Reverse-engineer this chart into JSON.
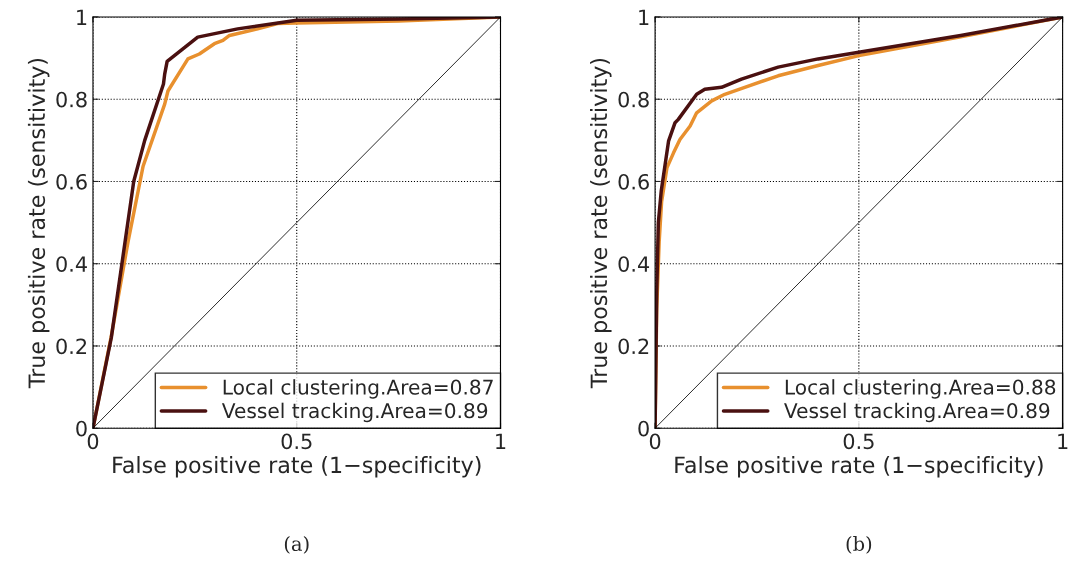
{
  "chart_data": [
    {
      "type": "line",
      "xlabel": "False positive rate (1−specificity)",
      "ylabel": "True positive rate (sensitivity)",
      "xlim": [
        0,
        1
      ],
      "ylim": [
        0,
        1
      ],
      "xticks": [
        0,
        0.5,
        1
      ],
      "yticks": [
        0,
        0.2,
        0.4,
        0.6,
        0.8,
        1
      ],
      "grid": true,
      "legend": "bottom right",
      "line_style": "solid",
      "annotations": [
        "(a)"
      ],
      "series": [
        {
          "name": "Local clustering.Area=0.87",
          "color": "#e8902e",
          "x": [
            0,
            0.045,
            0.086,
            0.123,
            0.176,
            0.184,
            0.233,
            0.261,
            0.298,
            0.319,
            0.335,
            0.404,
            0.453,
            0.5,
            0.75,
            1
          ],
          "values": [
            0,
            0.224,
            0.453,
            0.637,
            0.788,
            0.82,
            0.898,
            0.91,
            0.935,
            0.943,
            0.955,
            0.971,
            0.984,
            0.985,
            0.99,
            1
          ]
        },
        {
          "name": "Vessel tracking.Area=0.89",
          "color": "#4a1010",
          "x": [
            0,
            0.045,
            0.1,
            0.127,
            0.173,
            0.176,
            0.182,
            0.257,
            0.355,
            0.5,
            0.75,
            1
          ],
          "values": [
            0,
            0.22,
            0.6,
            0.7,
            0.837,
            0.861,
            0.892,
            0.951,
            0.971,
            0.992,
            0.995,
            1
          ]
        },
        {
          "color": "#000000",
          "x": [
            0,
            1
          ],
          "values": [
            0,
            1
          ]
        }
      ]
    },
    {
      "type": "line",
      "xlabel": "False positive rate (1−specificity)",
      "ylabel": "True positive rate (sensitivity)",
      "xlim": [
        0,
        1
      ],
      "ylim": [
        0,
        1
      ],
      "xticks": [
        0,
        0.5,
        1
      ],
      "yticks": [
        0,
        0.2,
        0.4,
        0.6,
        0.8,
        1
      ],
      "grid": true,
      "legend": "bottom right",
      "line_style": "solid",
      "annotations": [
        "(b)"
      ],
      "series": [
        {
          "name": "Local clustering.Area=0.88",
          "color": "#e8902e",
          "x": [
            0,
            0.004,
            0.01,
            0.016,
            0.029,
            0.045,
            0.061,
            0.086,
            0.102,
            0.139,
            0.171,
            0.22,
            0.302,
            0.4,
            0.5,
            0.75,
            1
          ],
          "values": [
            0,
            0.29,
            0.453,
            0.551,
            0.633,
            0.669,
            0.702,
            0.735,
            0.767,
            0.796,
            0.812,
            0.829,
            0.857,
            0.882,
            0.906,
            0.952,
            1
          ]
        },
        {
          "name": "Vessel tracking.Area=0.89",
          "color": "#4a1010",
          "x": [
            0,
            0.004,
            0.008,
            0.015,
            0.033,
            0.049,
            0.057,
            0.102,
            0.122,
            0.163,
            0.212,
            0.302,
            0.4,
            0.5,
            0.75,
            1
          ],
          "values": [
            0,
            0.33,
            0.5,
            0.576,
            0.698,
            0.743,
            0.751,
            0.812,
            0.824,
            0.829,
            0.849,
            0.878,
            0.898,
            0.914,
            0.955,
            1
          ]
        },
        {
          "color": "#000000",
          "x": [
            0,
            1
          ],
          "values": [
            0,
            1
          ]
        }
      ]
    }
  ]
}
